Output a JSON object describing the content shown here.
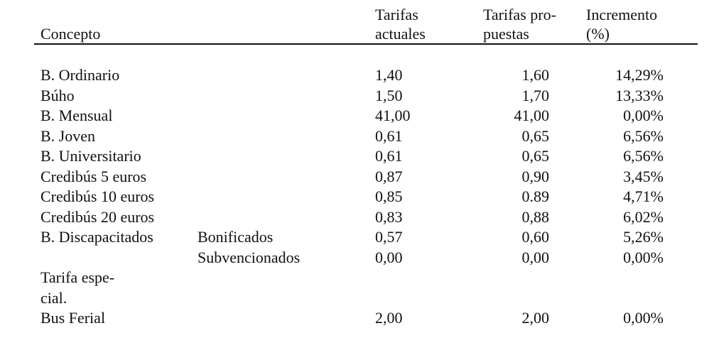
{
  "header": {
    "concepto": "Concepto",
    "tarifas_actuales": [
      "Tarifas",
      "actuales"
    ],
    "tarifas_propuestas": [
      "Tarifas pro-",
      "puestas"
    ],
    "incremento": [
      "Incremento",
      "(%)"
    ]
  },
  "rows": [
    {
      "concepto": "B. Ordinario",
      "sub": "",
      "actual": "1,40",
      "propuesta": "1,60",
      "incremento": "14,29%"
    },
    {
      "concepto": "Búho",
      "sub": "",
      "actual": "1,50",
      "propuesta": "1,70",
      "incremento": "13,33%"
    },
    {
      "concepto": "B. Mensual",
      "sub": "",
      "actual": "41,00",
      "propuesta": "41,00",
      "incremento": "0,00%"
    },
    {
      "concepto": "B. Joven",
      "sub": "",
      "actual": "0,61",
      "propuesta": "0,65",
      "incremento": "6,56%"
    },
    {
      "concepto": "B. Universitario",
      "sub": "",
      "actual": "0,61",
      "propuesta": "0,65",
      "incremento": "6,56%"
    },
    {
      "concepto": "Credibús 5 euros",
      "sub": "",
      "actual": "0,87",
      "propuesta": "0,90",
      "incremento": "3,45%"
    },
    {
      "concepto": "Credibús 10 euros",
      "sub": "",
      "actual": "0,85",
      "propuesta": "0.89",
      "incremento": "4,71%"
    },
    {
      "concepto": "Credibús 20 euros",
      "sub": "",
      "actual": "0,83",
      "propuesta": "0,88",
      "incremento": "6,02%"
    },
    {
      "concepto": "B. Discapacitados",
      "sub": "Bonificados",
      "actual": "0,57",
      "propuesta": "0,60",
      "incremento": "5,26%"
    },
    {
      "concepto": "",
      "sub": "Subvencionados",
      "actual": "0,00",
      "propuesta": "0,00",
      "incremento": "0,00%"
    },
    {
      "concepto": "Tarifa espe-",
      "sub": "",
      "actual": "",
      "propuesta": "",
      "incremento": ""
    },
    {
      "concepto": "cial.",
      "sub": "",
      "actual": "",
      "propuesta": "",
      "incremento": ""
    },
    {
      "concepto": "Bus Ferial",
      "sub": "",
      "actual": "2,00",
      "propuesta": "2,00",
      "incremento": "0,00%"
    }
  ]
}
